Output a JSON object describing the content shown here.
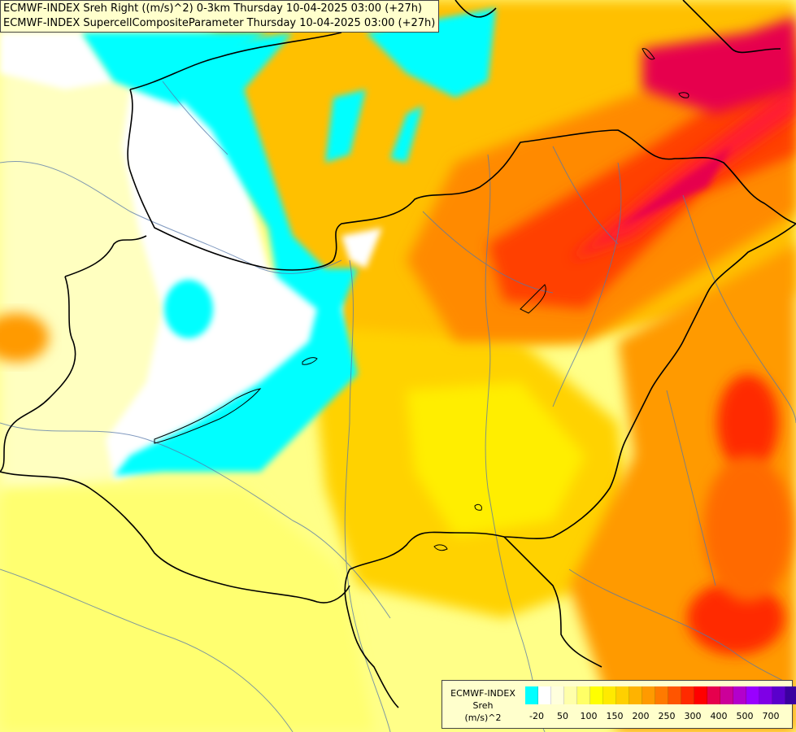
{
  "title": {
    "line1": "ECMWF-INDEX Sreh Right ((m/s)^2) 0-3km Thursday 10-04-2025 03:00 (+27h)",
    "line2": "ECMWF-INDEX SupercellCompositeParameter Thursday 10-04-2025 03:00 (+27h)"
  },
  "legend": {
    "model": "ECMWF-INDEX",
    "parameter": "Sreh",
    "unit": "(m/s)^2",
    "colors": [
      "#00ffff",
      "#ffffff",
      "#ffffdd",
      "#ffffaa",
      "#ffff66",
      "#ffff00",
      "#ffea00",
      "#ffd000",
      "#ffb300",
      "#ff9a00",
      "#ff7a00",
      "#ff5500",
      "#ff2a00",
      "#ff0000",
      "#e6004d",
      "#cc0099",
      "#b300cc",
      "#9900ff",
      "#7f00e6",
      "#5a00cc",
      "#3a00a0",
      "#1a0080"
    ],
    "ticks": [
      "-20",
      "50",
      "100",
      "150",
      "200",
      "250",
      "300",
      "400",
      "500",
      "700"
    ]
  }
}
